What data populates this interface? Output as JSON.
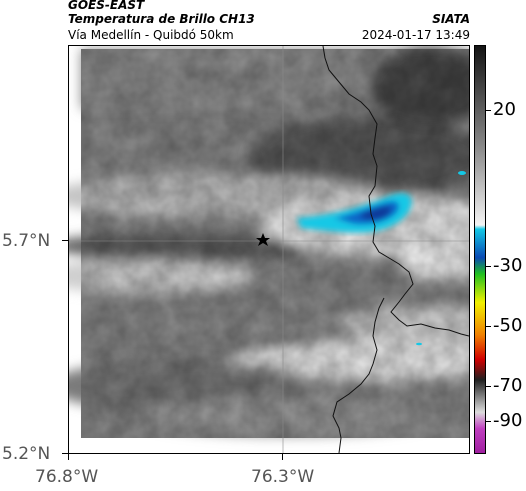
{
  "header": {
    "satellite": "GOES-EAST",
    "product": "Temperatura de Brillo CH13",
    "route": "Vía Medellín - Quibdó 50km",
    "org": "SIATA",
    "timestamp": "2024-01-17 13:49"
  },
  "axes": {
    "lat_ticks": [
      "5.7°N",
      "5.2°N"
    ],
    "lon_ticks": [
      "76.8°W",
      "76.3°W"
    ]
  },
  "colorbar": {
    "labels": [
      "20",
      "-30",
      "-50",
      "-70",
      "-90"
    ],
    "colors": {
      "warm_dark": "#141414",
      "gray_mid": "#8a8a8a",
      "near_white": "#f4f4f4",
      "cyan": "#14c8e6",
      "blue": "#0a4ab4",
      "green": "#20c020",
      "yellow": "#f0f000",
      "orange": "#f08000",
      "red": "#d00000",
      "magenta": "#c040c0"
    }
  },
  "map": {
    "marker": "star-icon",
    "border_color": "#000000",
    "gridline_color": "#8a8a8a"
  }
}
